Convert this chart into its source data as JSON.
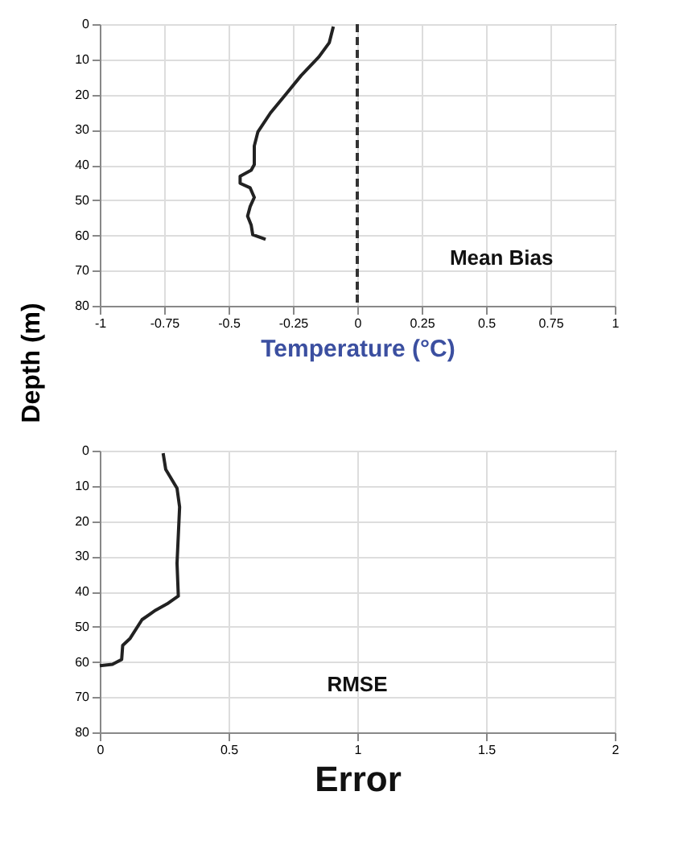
{
  "chart_data": [
    {
      "type": "line",
      "xlabel": "Temperature (°C)",
      "ylabel": "Depth (m)",
      "annotations": [
        "Mean Bias"
      ],
      "series": [
        {
          "color": "#222222",
          "x": [
            -0.093,
            -0.109,
            -0.149,
            -0.218,
            -0.277,
            -0.337,
            -0.386,
            -0.4,
            -0.4,
            -0.412,
            -0.455,
            -0.455,
            -0.416,
            -0.4,
            -0.416,
            -0.426,
            -0.412,
            -0.406,
            -0.356
          ],
          "values": [
            0.7,
            5.3,
            9.3,
            14.6,
            19.9,
            25.2,
            30.6,
            34.6,
            39.9,
            41.5,
            43.2,
            45.2,
            46.5,
            49.2,
            51.8,
            54.5,
            57.1,
            59.8,
            61.1
          ]
        }
      ],
      "xlim": [
        -1,
        1
      ],
      "xticks": [
        -1,
        -0.75,
        -0.5,
        -0.25,
        0,
        0.25,
        0.5,
        0.75,
        1
      ],
      "ylim": [
        80,
        0
      ],
      "yticks": [
        0,
        10,
        20,
        30,
        40,
        50,
        60,
        70,
        80
      ],
      "ref_lines": [
        {
          "axis": "x",
          "value": 0,
          "line_style": "dashed",
          "color": "#333333"
        }
      ],
      "grid": true
    },
    {
      "type": "line",
      "xlabel": "Error",
      "annotations": [
        "RMSE"
      ],
      "series": [
        {
          "color": "#222222",
          "x": [
            0.246,
            0.256,
            0.3,
            0.31,
            0.3,
            0.305,
            0.266,
            0.217,
            0.164,
            0.118,
            0.089,
            0.085,
            0.049,
            0
          ],
          "values": [
            0.7,
            5.3,
            10.7,
            16,
            32,
            41.3,
            43.3,
            45.3,
            48,
            53.3,
            55.3,
            59.3,
            60.7,
            61.1
          ]
        }
      ],
      "xlim": [
        0,
        2
      ],
      "xticks": [
        0,
        0.5,
        1,
        1.5,
        2
      ],
      "ylim": [
        80,
        0
      ],
      "yticks": [
        0,
        10,
        20,
        30,
        40,
        50,
        60,
        70,
        80
      ],
      "grid": true
    }
  ]
}
